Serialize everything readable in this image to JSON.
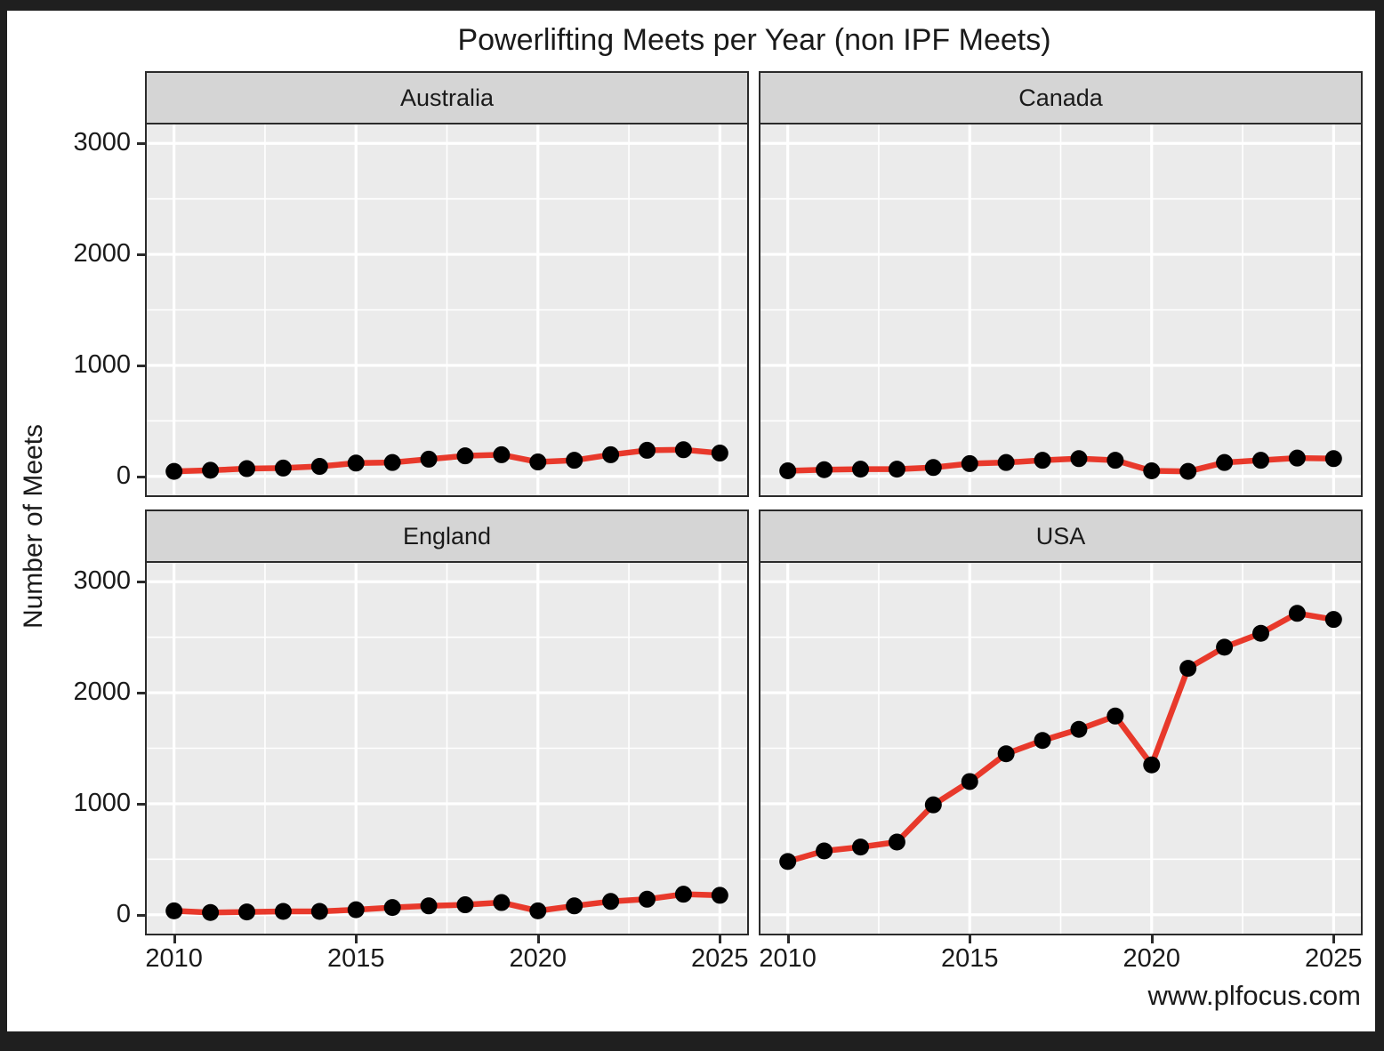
{
  "title": "Powerlifting Meets per Year (non IPF Meets)",
  "footer": "www.plfocus.com",
  "chart_data": {
    "type": "line",
    "title": "Powerlifting Meets per Year (non IPF Meets)",
    "xlabel": "",
    "ylabel": "Number of Meets",
    "facet_layout": "2x2 grid, one panel per country",
    "legend": "none",
    "grid": true,
    "x": [
      2010,
      2011,
      2012,
      2013,
      2014,
      2015,
      2016,
      2017,
      2018,
      2019,
      2020,
      2021,
      2022,
      2023,
      2024,
      2025
    ],
    "x_ticks": [
      2010,
      2015,
      2020,
      2025
    ],
    "x_minor_ticks": [
      2012.5,
      2017.5,
      2022.5
    ],
    "y_ticks": [
      0,
      1000,
      2000,
      3000
    ],
    "y_minor_ticks": [
      500,
      1500,
      2500
    ],
    "xlim": [
      2009.25,
      2025.75
    ],
    "ylim": [
      -170,
      3170
    ],
    "series": [
      {
        "name": "Australia",
        "values": [
          45,
          55,
          70,
          75,
          90,
          120,
          125,
          155,
          185,
          195,
          130,
          145,
          195,
          235,
          240,
          210
        ]
      },
      {
        "name": "Canada",
        "values": [
          50,
          60,
          65,
          65,
          80,
          115,
          125,
          145,
          160,
          145,
          50,
          45,
          125,
          145,
          165,
          160
        ]
      },
      {
        "name": "England",
        "values": [
          35,
          20,
          25,
          30,
          30,
          45,
          65,
          80,
          90,
          110,
          35,
          80,
          120,
          140,
          185,
          175
        ]
      },
      {
        "name": "USA",
        "values": [
          480,
          575,
          610,
          655,
          990,
          1200,
          1450,
          1570,
          1670,
          1790,
          1350,
          2220,
          2410,
          2535,
          2715,
          2660
        ]
      }
    ],
    "colors": {
      "line": "#E8392B",
      "point": "#000000",
      "panel_bg": "#EBEBEB",
      "strip_bg": "#D5D5D5",
      "grid": "#FFFFFF",
      "border": "#2B2B2B",
      "frame": "#1F1F1F",
      "text": "#1A1A1A"
    }
  }
}
